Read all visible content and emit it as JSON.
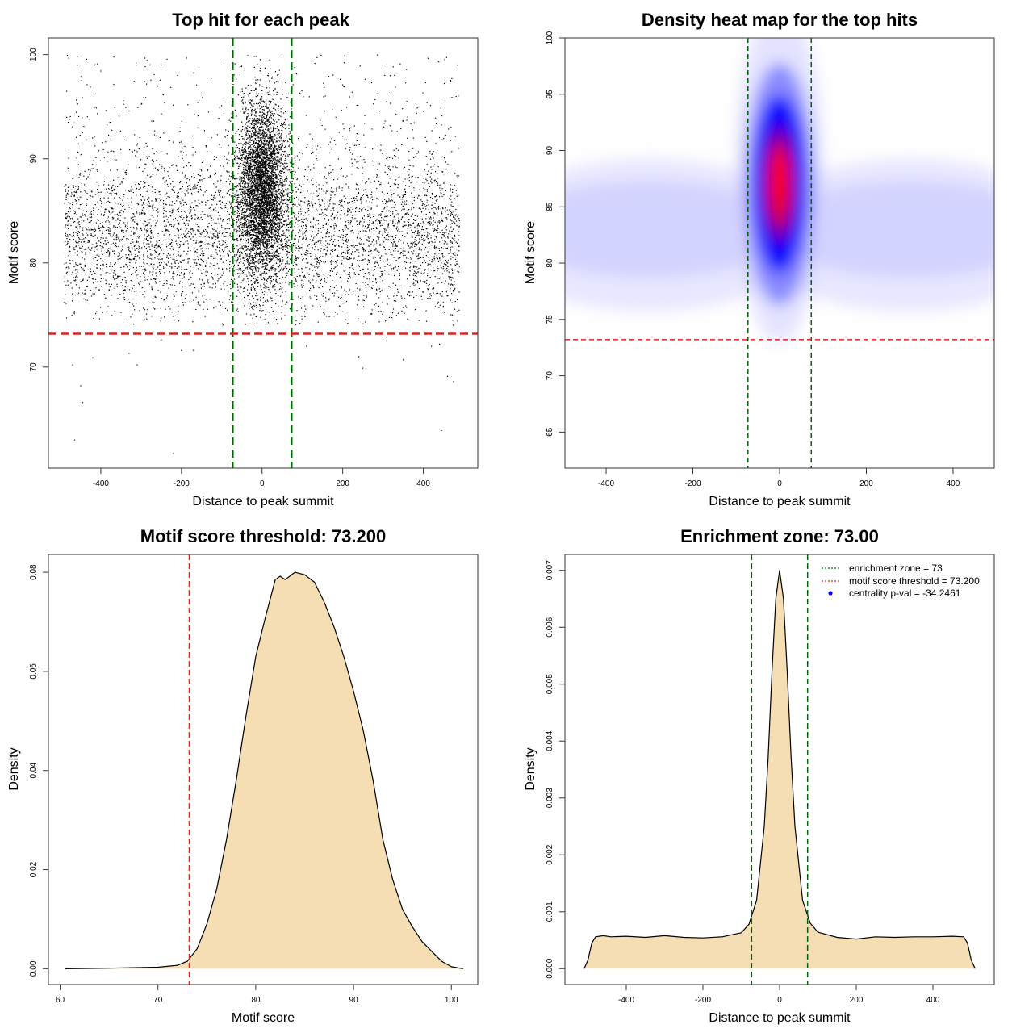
{
  "chart_data": [
    {
      "id": "scatter",
      "type": "scatter",
      "title": "Top hit for each peak",
      "xlabel": "Distance to peak summit",
      "ylabel": "Motif score",
      "xlim": [
        -530,
        535
      ],
      "ylim": [
        60.3,
        101.6
      ],
      "xticks": [
        -400,
        -200,
        0,
        200,
        400
      ],
      "yticks": [
        70,
        80,
        90,
        100
      ],
      "hlines": [
        {
          "value": 73.2,
          "color": "#dd2222",
          "dash": "10,5",
          "width": 2.5
        }
      ],
      "vlines": [
        {
          "value": -73,
          "color": "#006400",
          "dash": "10,5",
          "width": 2.5
        },
        {
          "value": 73,
          "color": "#006400",
          "dash": "10,5",
          "width": 2.5
        }
      ],
      "background_distribution": {
        "x_range": [
          -490,
          490
        ],
        "y_mean": 82.5,
        "y_sd": 4.0,
        "y_range": [
          74,
          100
        ],
        "n_points": 5500
      },
      "central_distribution": {
        "x_mean": 0,
        "x_sd": 30,
        "y_mean": 87,
        "y_sd": 4.3,
        "y_range": [
          75,
          100
        ],
        "n_points": 5000
      },
      "outliers": [
        {
          "x": -465,
          "y": 63.0
        },
        {
          "x": -220,
          "y": 61.7
        },
        {
          "x": 445,
          "y": 63.9
        },
        {
          "x": -445,
          "y": 66.6
        },
        {
          "x": -450,
          "y": 68.2
        },
        {
          "x": -470,
          "y": 70.2
        },
        {
          "x": 460,
          "y": 69.1
        },
        {
          "x": 475,
          "y": 68.6
        },
        {
          "x": -310,
          "y": 70.2
        },
        {
          "x": 250,
          "y": 69.9
        },
        {
          "x": -420,
          "y": 70.9
        },
        {
          "x": 350,
          "y": 70.7
        },
        {
          "x": -200,
          "y": 71.6
        },
        {
          "x": -170,
          "y": 71.6
        },
        {
          "x": 240,
          "y": 71.0
        },
        {
          "x": 420,
          "y": 72.0
        },
        {
          "x": -330,
          "y": 71.3
        },
        {
          "x": 440,
          "y": 72.2
        },
        {
          "x": 110,
          "y": 72.0
        },
        {
          "x": -250,
          "y": 72.6
        },
        {
          "x": 300,
          "y": 72.5
        }
      ]
    },
    {
      "id": "heatmap",
      "type": "heatmap",
      "title": "Density heat map for the top hits",
      "xlabel": "Distance to peak summit",
      "ylabel": "Motif score",
      "xlim": [
        -495,
        495
      ],
      "ylim": [
        61.8,
        100
      ],
      "xticks": [
        -400,
        -200,
        0,
        200,
        400
      ],
      "yticks": [
        65,
        70,
        75,
        80,
        85,
        90,
        95,
        100
      ],
      "hlines": [
        {
          "value": 73.2,
          "color": "#dd2222",
          "dash": "6,4",
          "width": 1.5
        }
      ],
      "vlines": [
        {
          "value": -73,
          "color": "#006400",
          "dash": "6,4",
          "width": 1.5
        },
        {
          "value": 73,
          "color": "#006400",
          "dash": "6,4",
          "width": 1.5
        }
      ],
      "hotspot": {
        "x": 0,
        "y": 87
      },
      "colors": {
        "low": "#ffffff",
        "mid": "#0000ff",
        "high": "#ff0000"
      }
    },
    {
      "id": "score-density",
      "type": "area",
      "title": "Motif score threshold: 73.200",
      "xlabel": "Motif score",
      "ylabel": "Density",
      "xlim": [
        58.8,
        102.7
      ],
      "ylim": [
        -0.0032,
        0.0836
      ],
      "xticks": [
        60,
        70,
        80,
        90,
        100
      ],
      "yticks": [
        0.0,
        0.02,
        0.04,
        0.06,
        0.08
      ],
      "ytick_labels": [
        "0.00",
        "0.02",
        "0.04",
        "0.06",
        "0.08"
      ],
      "vlines": [
        {
          "value": 73.2,
          "color": "#dd2222",
          "dash": "7,4",
          "width": 1.5
        }
      ],
      "fill": "#f5deb3",
      "x": [
        60.5,
        65,
        70,
        72,
        73,
        74,
        75,
        76,
        77,
        78,
        79,
        80,
        81,
        82,
        82.5,
        83,
        84,
        85,
        86,
        87,
        88,
        89,
        90,
        91,
        92,
        93,
        94,
        95,
        96,
        97,
        98,
        99,
        100,
        101.2
      ],
      "values": [
        0.0,
        0.0001,
        0.0003,
        0.0007,
        0.0015,
        0.004,
        0.009,
        0.016,
        0.026,
        0.038,
        0.051,
        0.063,
        0.071,
        0.0785,
        0.0792,
        0.0785,
        0.08,
        0.0795,
        0.078,
        0.074,
        0.069,
        0.063,
        0.056,
        0.048,
        0.038,
        0.026,
        0.018,
        0.012,
        0.0085,
        0.0055,
        0.0035,
        0.0015,
        0.0004,
        0.0
      ]
    },
    {
      "id": "distance-density",
      "type": "area",
      "title": "Enrichment zone: 73.00",
      "xlabel": "Distance to peak summit",
      "ylabel": "Density",
      "xlim": [
        -560,
        560
      ],
      "ylim": [
        -0.00028,
        0.00728
      ],
      "xticks": [
        -400,
        -200,
        0,
        200,
        400
      ],
      "yticks": [
        0.0,
        0.001,
        0.002,
        0.003,
        0.004,
        0.005,
        0.006,
        0.007
      ],
      "ytick_labels": [
        "0.000",
        "0.001",
        "0.002",
        "0.003",
        "0.004",
        "0.005",
        "0.006",
        "0.007"
      ],
      "vlines": [
        {
          "value": -73,
          "color": "#006400",
          "dash": "7,4",
          "width": 1.5
        },
        {
          "value": 73,
          "color": "#006400",
          "dash": "7,4",
          "width": 1.5
        }
      ],
      "fill": "#f5deb3",
      "x": [
        -510,
        -500,
        -490,
        -480,
        -460,
        -440,
        -400,
        -350,
        -300,
        -250,
        -200,
        -150,
        -100,
        -80,
        -60,
        -40,
        -30,
        -20,
        -10,
        0,
        10,
        20,
        30,
        40,
        60,
        80,
        100,
        150,
        200,
        250,
        300,
        350,
        400,
        450,
        480,
        490,
        500,
        510
      ],
      "values": [
        0.0,
        0.00015,
        0.00045,
        0.00056,
        0.00058,
        0.00056,
        0.00057,
        0.00055,
        0.00058,
        0.00055,
        0.00054,
        0.00056,
        0.00063,
        0.00078,
        0.0012,
        0.0025,
        0.0037,
        0.0052,
        0.0065,
        0.007,
        0.0065,
        0.0052,
        0.0037,
        0.0025,
        0.0012,
        0.0008,
        0.00064,
        0.00055,
        0.00052,
        0.00056,
        0.00055,
        0.00056,
        0.00056,
        0.00057,
        0.00056,
        0.00045,
        0.00015,
        0.0
      ],
      "legend": [
        {
          "label": "enrichment zone = 73",
          "color": "#006400",
          "style": "dotted-line"
        },
        {
          "label": "motif score threshold = 73.200",
          "color": "#dd2222",
          "style": "dotted-line"
        },
        {
          "label": "centrality p-val = -34.2461",
          "color": "#0000ff",
          "style": "dot"
        }
      ]
    }
  ]
}
